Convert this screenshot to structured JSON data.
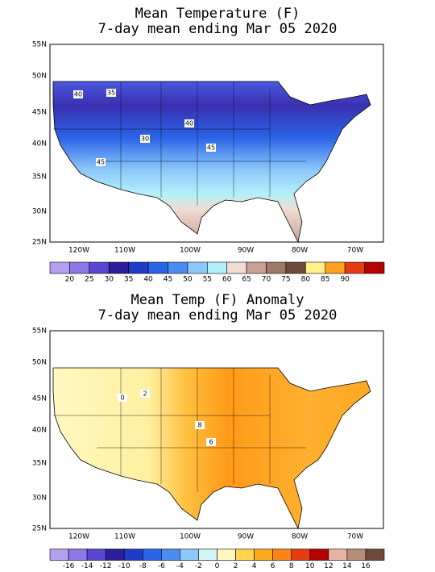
{
  "panels": [
    {
      "title": [
        "Mean Temperature (F)",
        "7-day mean ending Mar 05 2020"
      ],
      "lat_labels": [
        "55N",
        "50N",
        "45N",
        "40N",
        "35N",
        "30N",
        "25N"
      ],
      "lon_labels": [
        "120W",
        "110W",
        "100W",
        "90W",
        "80W",
        "70W"
      ],
      "contour_labels": [
        "40",
        "35",
        "30",
        "40",
        "45",
        "45"
      ],
      "colorbar": {
        "labels": [
          20,
          25,
          30,
          35,
          40,
          45,
          50,
          55,
          60,
          65,
          70,
          75,
          80,
          85,
          90
        ],
        "colors": [
          "#b4a0f0",
          "#8c78e6",
          "#5a46d2",
          "#2d1e9c",
          "#1e3cc8",
          "#2a64e6",
          "#4a8cf0",
          "#8cc8fa",
          "#b4f0fa",
          "#f0dcd2",
          "#c8a096",
          "#a07868",
          "#6e4a3c",
          "#fff08c",
          "#ffa01e",
          "#e63c14",
          "#b40000"
        ]
      }
    },
    {
      "title": [
        "Mean Temp (F) Anomaly",
        "7-day mean ending Mar 05 2020"
      ],
      "lat_labels": [
        "55N",
        "50N",
        "45N",
        "40N",
        "35N",
        "30N",
        "25N"
      ],
      "lon_labels": [
        "120W",
        "110W",
        "100W",
        "90W",
        "80W",
        "70W"
      ],
      "contour_labels": [
        "0",
        "2",
        "8",
        "6"
      ],
      "colorbar": {
        "labels": [
          -16,
          -14,
          -12,
          -10,
          -8,
          -6,
          -4,
          -2,
          0,
          2,
          4,
          6,
          8,
          10,
          12,
          14,
          16
        ],
        "colors": [
          "#b4a0f0",
          "#8c78e6",
          "#5a46d2",
          "#2d1e9c",
          "#1e3cc8",
          "#2a64e6",
          "#4a8cf0",
          "#8cc8fa",
          "#d2f5fa",
          "#fff8c0",
          "#ffd250",
          "#ffaa1e",
          "#ff8214",
          "#e63c14",
          "#b40000",
          "#e6b4a0",
          "#b48c78",
          "#6e4a3c"
        ]
      }
    }
  ]
}
